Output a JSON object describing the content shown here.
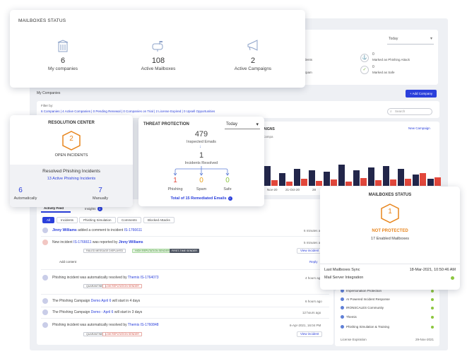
{
  "mailboxes_status_top": {
    "title": "MAILBOXES STATUS",
    "stats": [
      {
        "value": "6",
        "label": "My companies",
        "icon": "building-icon"
      },
      {
        "value": "108",
        "label": "Active Mailboxes",
        "icon": "mailbox-icon"
      },
      {
        "value": "2",
        "label": "Active Campaigns",
        "icon": "megaphone-icon"
      }
    ]
  },
  "background": {
    "today": "Today",
    "incidents_label": "Incidents",
    "spam_label": "as Spam",
    "phishing_attack": {
      "value": "0",
      "label": "Marked as Phishing Attack"
    },
    "marked_safe": {
      "value": "0",
      "label": "Marked as Safe"
    },
    "my_companies": "My Companies",
    "add_company": "+ Add Company",
    "filter_by": "Filter by:",
    "filters": "6 Companies | 4 Active Companies | 0 Pending Renewal | 0 Companies on Trial | 2 License Expired | 0 Upsell Opportunities",
    "search_placeholder": "Search",
    "campaigns_title": "PAIGNS",
    "new_campaign": "New Campaign",
    "campaign_sub": "Campa",
    "chart_dates": [
      "Nov-20",
      "21-Oct-20",
      "28"
    ]
  },
  "chart_data": {
    "type": "bar",
    "series": [
      {
        "values": [
          28,
          18,
          24,
          22,
          20,
          30,
          22,
          26,
          28,
          24,
          16,
          10
        ]
      },
      {
        "values": [
          8,
          6,
          10,
          7,
          9,
          6,
          11,
          8,
          9,
          10,
          18,
          12
        ]
      }
    ],
    "colors": [
      "#22264a",
      "#e2473b"
    ]
  },
  "resolution_center": {
    "title": "RESOLUTION CENTER",
    "open_count": "2",
    "open_label": "OPEN INCIDENTS",
    "resolved_title": "Resolved Phishing Incidents",
    "active_link": "13 Active Phishing Incidents",
    "auto": {
      "value": "6",
      "label": "Automatically"
    },
    "manual": {
      "value": "7",
      "label": "Manually"
    }
  },
  "threat_protection": {
    "title": "THREAT PROTECTION",
    "period": "Today",
    "inspected": {
      "value": "479",
      "label": "Inspected Emails"
    },
    "resolved": {
      "value": "1",
      "label": "Incidents Resolved"
    },
    "phishing": {
      "value": "1",
      "label": "Phishing"
    },
    "spam": {
      "value": "0",
      "label": "Spam"
    },
    "safe": {
      "value": "0",
      "label": "Safe"
    },
    "total_link": "Total of 15 Remediated Emails"
  },
  "activity": {
    "tabs": [
      "Activity Feed",
      "Insights"
    ],
    "insights_count": "3",
    "chips": [
      "All",
      "Incidents",
      "Phishing Simulation",
      "Comments",
      "Blocked Attacks"
    ],
    "rows": [
      {
        "name": "Jinny Williams",
        "text": " added a comment to incident ",
        "link": "IS-1766611",
        "time": "6 minutes ago"
      },
      {
        "pre": "New incident ",
        "link": "IS-1766611",
        "text": " was reported by ",
        "name": "Jinny Williams",
        "time": "5 minutes ago"
      },
      {
        "pre": "Phishing incident was automatically resolved by ",
        "link": "Themis IS-1764073",
        "time": "4 hours ago"
      },
      {
        "pre": "The Phishing Campaign ",
        "link": "Demo April 6",
        "text": " will start in 4 days",
        "time": "6 hours ago"
      },
      {
        "pre": "The Phishing Campaign ",
        "link": "Demo - April 6",
        "text": " will start in 3 days",
        "time": "12 hours ago"
      },
      {
        "pre": "Phishing incident was automatically resolved by ",
        "link": "Themis IS-1760848",
        "time": "6-Apr-2021, 16:04 PM"
      }
    ],
    "tags": {
      "failed": "FAILED MESSAGE DISPLAYED",
      "high_rep": "HIGH REPUTATION SENDER",
      "first_time": "FIRST-TIME SENDER",
      "quarantine": "QUARANTINE",
      "low_rep": "LOW REPUTATION SENDER"
    },
    "view_incident": "View incident",
    "add_content": "Add content",
    "reply": "Reply"
  },
  "mailboxes_status_right": {
    "title": "MAILBOXES STATUS",
    "count": "1",
    "status": "NOT PROTECTED",
    "enabled": "17 Enabled Mailboxes",
    "last_sync_label": "Last Mailboxes Sync",
    "last_sync_value": "18-Mar-2021, 10:50:46 AM",
    "integration": "Mail Server Integration"
  },
  "integrations": {
    "items": [
      "Impersonation Protection",
      "AI Powered Incident Response",
      "IRONSCALES Community",
      "Themis",
      "Phishing Simulation & Training"
    ],
    "license_label": "License Expiration",
    "license_value": "29-Nov-2021"
  }
}
